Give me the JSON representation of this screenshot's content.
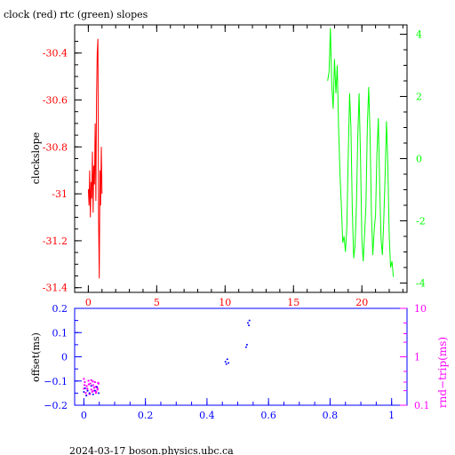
{
  "page": {
    "title": "clock (red) rtc (green) slopes",
    "footer": "2024-03-17 boson.physics.ubc.ca"
  },
  "colors": {
    "red": "#ff0000",
    "green": "#00ff00",
    "blue": "#0000ff",
    "magenta": "#ff00ff",
    "black": "#000000"
  },
  "chart_data": [
    {
      "type": "line",
      "title": "clock (red) rtc (green) slopes",
      "xlabel": "",
      "ylabel": "clockslope",
      "xlim": [
        -1,
        23.3
      ],
      "ylim": [
        -31.42,
        -30.28
      ],
      "y2lim": [
        -4.3,
        4.3
      ],
      "x_ticks": [
        "0",
        "5",
        "10",
        "15",
        "20"
      ],
      "y_ticks": [
        "-30.4",
        "-30.6",
        "-30.8",
        "-31",
        "-31.2",
        "-31.4"
      ],
      "y2_ticks": [
        "4",
        "2",
        "0",
        "-2",
        "-4"
      ],
      "grid": false,
      "series": [
        {
          "name": "clock",
          "axis": "left",
          "color": "#ff0000",
          "x": [
            0.0,
            0.05,
            0.1,
            0.15,
            0.2,
            0.25,
            0.3,
            0.35,
            0.4,
            0.45,
            0.5,
            0.55,
            0.6,
            0.65,
            0.7,
            0.75,
            0.8,
            0.85,
            0.9,
            0.95,
            1.0
          ],
          "y": [
            -30.98,
            -31.05,
            -30.9,
            -31.1,
            -30.95,
            -31.02,
            -30.82,
            -31.08,
            -30.88,
            -30.96,
            -30.7,
            -31.03,
            -30.6,
            -30.4,
            -30.34,
            -31.1,
            -31.36,
            -30.9,
            -31.05,
            -30.8,
            -31.0
          ]
        },
        {
          "name": "rtc",
          "axis": "right",
          "color": "#00ff00",
          "x": [
            17.5,
            17.6,
            17.7,
            17.8,
            17.9,
            18.0,
            18.1,
            18.2,
            18.3,
            18.4,
            18.5,
            18.6,
            18.7,
            18.8,
            18.9,
            19.0,
            19.1,
            19.2,
            19.3,
            19.4,
            19.5,
            19.6,
            19.7,
            19.8,
            19.9,
            20.0,
            20.1,
            20.2,
            20.3,
            20.4,
            20.5,
            20.6,
            20.7,
            20.8,
            20.9,
            21.0,
            21.1,
            21.2,
            21.3,
            21.4,
            21.5,
            21.6,
            21.7,
            21.8,
            21.9,
            22.0,
            22.1,
            22.2,
            22.3
          ],
          "y": [
            2.5,
            2.8,
            4.2,
            2.4,
            1.6,
            3.2,
            2.1,
            3.0,
            1.0,
            -0.5,
            -1.5,
            -2.7,
            -2.5,
            -3.0,
            -2.2,
            0.0,
            2.1,
            1.0,
            -1.6,
            -3.2,
            -2.8,
            -1.5,
            0.7,
            2.1,
            0.0,
            -2.6,
            -3.3,
            -2.4,
            -1.5,
            1.1,
            2.3,
            0.8,
            -1.8,
            -3.1,
            -2.3,
            -1.8,
            0.1,
            1.3,
            -0.8,
            -2.6,
            -3.1,
            -2.0,
            -0.5,
            1.2,
            -0.3,
            -2.5,
            -3.5,
            -3.3,
            -3.8
          ]
        }
      ]
    },
    {
      "type": "scatter",
      "xlabel": "",
      "ylabel": "offset(ms)",
      "y2label": "rnd−trip(ms)",
      "xlim": [
        -0.03,
        1.05
      ],
      "ylim": [
        -0.2,
        0.2
      ],
      "y2lim": [
        0.1,
        10
      ],
      "y2_log": true,
      "x_ticks": [
        "0",
        "0.2",
        "0.4",
        "0.6",
        "0.8",
        "1"
      ],
      "y_ticks": [
        "0.2",
        "0.1",
        "0",
        "−0.1",
        "−0.2"
      ],
      "y2_ticks": [
        "10",
        "1",
        "0.1"
      ],
      "grid": false,
      "series": [
        {
          "name": "offset",
          "axis": "left",
          "color": "#0000ff",
          "x": [
            0.0,
            0.004,
            0.008,
            0.012,
            0.018,
            0.024,
            0.03,
            0.036,
            0.042,
            0.048,
            0.46,
            0.463,
            0.466,
            0.47,
            0.527,
            0.53,
            0.533,
            0.536,
            0.538
          ],
          "y": [
            -0.145,
            -0.13,
            -0.16,
            -0.14,
            -0.15,
            -0.12,
            -0.155,
            -0.14,
            -0.125,
            -0.15,
            -0.02,
            -0.03,
            -0.01,
            -0.025,
            0.04,
            0.05,
            0.14,
            0.13,
            0.15
          ]
        },
        {
          "name": "rnd-trip",
          "axis": "right",
          "color": "#ff00ff",
          "x": [
            0.0,
            0.003,
            0.006,
            0.009,
            0.012,
            0.015,
            0.018,
            0.021,
            0.024,
            0.027,
            0.03,
            0.033,
            0.036,
            0.039,
            0.042,
            0.045,
            0.048,
            0.0,
            0.008,
            0.016,
            0.024,
            0.032,
            0.04,
            0.046,
            0.002,
            0.011,
            0.02,
            0.029,
            0.038,
            0.044
          ],
          "y": [
            0.22,
            0.3,
            0.18,
            0.25,
            0.2,
            0.32,
            0.17,
            0.28,
            0.21,
            0.19,
            0.26,
            0.23,
            0.3,
            0.18,
            0.24,
            0.22,
            0.28,
            0.35,
            0.16,
            0.27,
            0.33,
            0.2,
            0.19,
            0.29,
            0.26,
            0.22,
            0.17,
            0.31,
            0.24,
            0.21
          ]
        }
      ]
    }
  ]
}
